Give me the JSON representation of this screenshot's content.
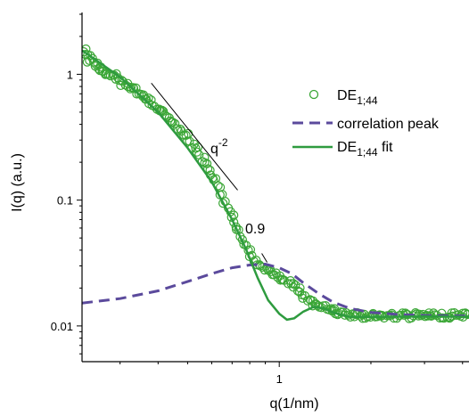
{
  "chart_data": {
    "type": "scatter",
    "xlabel": "q(1/nm)",
    "ylabel": "I(q) (a.u.)",
    "x_scale": "log",
    "y_scale": "log",
    "xlim": [
      0.225,
      4.2
    ],
    "ylim": [
      0.0052,
      3.1
    ],
    "x_ticks": [
      {
        "value": 1,
        "label": "1"
      }
    ],
    "y_ticks": [
      {
        "value": 0.01,
        "label": "0.01"
      },
      {
        "value": 0.1,
        "label": "0.1"
      },
      {
        "value": 1,
        "label": "1"
      }
    ],
    "legend_position": "top-right",
    "colors": {
      "data": "#3aa635",
      "fit": "#2e9b3f",
      "peak": "#5b4a9c",
      "axis": "#000000"
    },
    "annotations": [
      {
        "label_prefix": "q",
        "label_sup": "-2",
        "x1": 0.38,
        "y1": 0.85,
        "x2": 0.73,
        "y2": 0.12
      },
      {
        "label": "0.9",
        "x": 0.9,
        "y": 0.03
      }
    ],
    "series": [
      {
        "name_main": "DE",
        "name_sub": "1;44",
        "name_suffix": "",
        "style": "open-circles",
        "points": [
          [
            0.228,
            1.52
          ],
          [
            0.232,
            1.43
          ],
          [
            0.236,
            1.3
          ],
          [
            0.24,
            1.38
          ],
          [
            0.245,
            1.2
          ],
          [
            0.25,
            1.18
          ],
          [
            0.255,
            1.1
          ],
          [
            0.26,
            1.12
          ],
          [
            0.266,
            1.05
          ],
          [
            0.272,
            1.0
          ],
          [
            0.278,
            0.95
          ],
          [
            0.284,
            0.98
          ],
          [
            0.29,
            0.9
          ],
          [
            0.297,
            0.88
          ],
          [
            0.304,
            0.85
          ],
          [
            0.31,
            0.82
          ],
          [
            0.318,
            0.79
          ],
          [
            0.325,
            0.76
          ],
          [
            0.333,
            0.74
          ],
          [
            0.341,
            0.71
          ],
          [
            0.349,
            0.68
          ],
          [
            0.357,
            0.66
          ],
          [
            0.366,
            0.63
          ],
          [
            0.375,
            0.6
          ],
          [
            0.384,
            0.58
          ],
          [
            0.393,
            0.55
          ],
          [
            0.403,
            0.52
          ],
          [
            0.413,
            0.5
          ],
          [
            0.423,
            0.47
          ],
          [
            0.433,
            0.44
          ],
          [
            0.444,
            0.42
          ],
          [
            0.455,
            0.39
          ],
          [
            0.466,
            0.37
          ],
          [
            0.478,
            0.34
          ],
          [
            0.49,
            0.32
          ],
          [
            0.502,
            0.3
          ],
          [
            0.515,
            0.27
          ],
          [
            0.528,
            0.25
          ],
          [
            0.541,
            0.23
          ],
          [
            0.555,
            0.21
          ],
          [
            0.569,
            0.19
          ],
          [
            0.583,
            0.17
          ],
          [
            0.598,
            0.155
          ],
          [
            0.613,
            0.14
          ],
          [
            0.628,
            0.125
          ],
          [
            0.644,
            0.11
          ],
          [
            0.66,
            0.097
          ],
          [
            0.677,
            0.085
          ],
          [
            0.694,
            0.074
          ],
          [
            0.711,
            0.064
          ],
          [
            0.729,
            0.056
          ],
          [
            0.747,
            0.049
          ],
          [
            0.766,
            0.044
          ],
          [
            0.785,
            0.04
          ],
          [
            0.805,
            0.037
          ],
          [
            0.826,
            0.034
          ],
          [
            0.847,
            0.032
          ],
          [
            0.868,
            0.03
          ],
          [
            0.89,
            0.029
          ],
          [
            0.912,
            0.028
          ],
          [
            0.935,
            0.027
          ],
          [
            0.959,
            0.026
          ],
          [
            0.983,
            0.025
          ],
          [
            1.01,
            0.024
          ],
          [
            1.03,
            0.023
          ],
          [
            1.06,
            0.022
          ],
          [
            1.09,
            0.021
          ],
          [
            1.11,
            0.02
          ],
          [
            1.14,
            0.019
          ],
          [
            1.17,
            0.018
          ],
          [
            1.2,
            0.017
          ],
          [
            1.23,
            0.016
          ],
          [
            1.26,
            0.0155
          ],
          [
            1.29,
            0.015
          ],
          [
            1.33,
            0.0145
          ],
          [
            1.36,
            0.014
          ],
          [
            1.4,
            0.0138
          ],
          [
            1.43,
            0.0135
          ],
          [
            1.47,
            0.0132
          ],
          [
            1.5,
            0.013
          ],
          [
            1.54,
            0.0128
          ],
          [
            1.58,
            0.0126
          ],
          [
            1.62,
            0.0125
          ],
          [
            1.66,
            0.0124
          ],
          [
            1.7,
            0.0123
          ],
          [
            1.75,
            0.0122
          ],
          [
            1.79,
            0.0122
          ],
          [
            1.84,
            0.0121
          ],
          [
            1.88,
            0.0121
          ],
          [
            1.93,
            0.012
          ],
          [
            1.98,
            0.012
          ],
          [
            2.03,
            0.0121
          ],
          [
            2.08,
            0.012
          ],
          [
            2.14,
            0.0121
          ],
          [
            2.19,
            0.012
          ],
          [
            2.25,
            0.0121
          ],
          [
            2.3,
            0.012
          ],
          [
            2.36,
            0.0121
          ],
          [
            2.42,
            0.012
          ],
          [
            2.48,
            0.0121
          ],
          [
            2.55,
            0.012
          ],
          [
            2.61,
            0.0121
          ],
          [
            2.68,
            0.012
          ],
          [
            2.75,
            0.0121
          ],
          [
            2.82,
            0.012
          ],
          [
            2.89,
            0.0121
          ],
          [
            2.96,
            0.012
          ],
          [
            3.04,
            0.0121
          ],
          [
            3.11,
            0.012
          ],
          [
            3.19,
            0.0121
          ],
          [
            3.27,
            0.012
          ],
          [
            3.36,
            0.0121
          ],
          [
            3.44,
            0.012
          ],
          [
            3.53,
            0.0121
          ],
          [
            3.62,
            0.012
          ],
          [
            3.71,
            0.0121
          ],
          [
            3.81,
            0.012
          ],
          [
            3.9,
            0.0121
          ],
          [
            4.0,
            0.012
          ],
          [
            4.1,
            0.0121
          ]
        ]
      },
      {
        "name_main": "correlation peak",
        "name_sub": "",
        "name_suffix": "",
        "style": "dashed-line",
        "points": [
          [
            0.225,
            0.0152
          ],
          [
            0.3,
            0.0165
          ],
          [
            0.4,
            0.019
          ],
          [
            0.5,
            0.0225
          ],
          [
            0.6,
            0.026
          ],
          [
            0.7,
            0.029
          ],
          [
            0.8,
            0.0305
          ],
          [
            0.9,
            0.031
          ],
          [
            1.0,
            0.029
          ],
          [
            1.1,
            0.026
          ],
          [
            1.2,
            0.022
          ],
          [
            1.35,
            0.018
          ],
          [
            1.5,
            0.0155
          ],
          [
            1.7,
            0.0138
          ],
          [
            2.0,
            0.0128
          ],
          [
            2.5,
            0.0123
          ],
          [
            3.0,
            0.0121
          ],
          [
            4.2,
            0.012
          ]
        ]
      },
      {
        "name_main": "DE",
        "name_sub": "1;44",
        "name_suffix": " fit",
        "style": "solid-line",
        "points": [
          [
            0.225,
            1.55
          ],
          [
            0.3,
            0.95
          ],
          [
            0.4,
            0.5
          ],
          [
            0.5,
            0.26
          ],
          [
            0.6,
            0.14
          ],
          [
            0.7,
            0.07
          ],
          [
            0.78,
            0.04
          ],
          [
            0.85,
            0.024
          ],
          [
            0.92,
            0.016
          ],
          [
            1.0,
            0.0125
          ],
          [
            1.06,
            0.0112
          ],
          [
            1.12,
            0.0115
          ],
          [
            1.2,
            0.013
          ],
          [
            1.3,
            0.0142
          ],
          [
            1.4,
            0.0138
          ],
          [
            1.5,
            0.0128
          ],
          [
            1.7,
            0.0118
          ],
          [
            2.0,
            0.0118
          ],
          [
            3.0,
            0.0119
          ],
          [
            4.2,
            0.0118
          ]
        ]
      }
    ]
  }
}
